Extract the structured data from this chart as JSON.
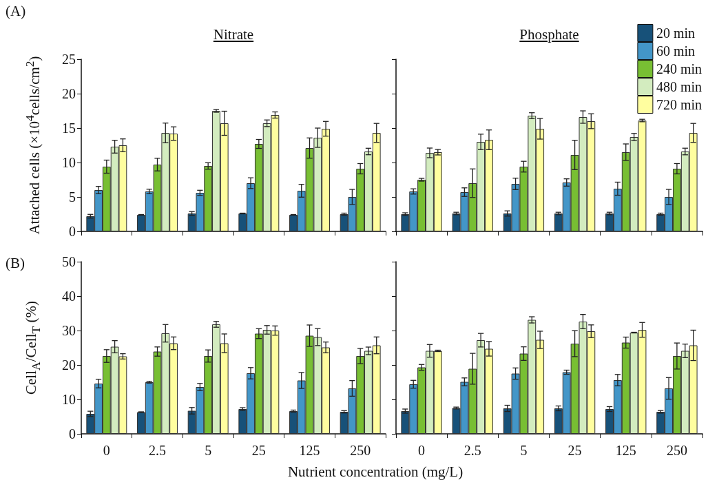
{
  "chart_data": [
    {
      "type": "bar",
      "title": "Nitrate",
      "ylabel": "Attached cells (×10$^{4}$cells/cm$^{2}$)",
      "annotations": [
        "(A)"
      ],
      "categories": [
        "0",
        "2.5",
        "5",
        "25",
        "125",
        "250"
      ],
      "ylim": [
        0,
        25
      ],
      "yticks": [
        0,
        5,
        10,
        15,
        20,
        25
      ],
      "grid": false,
      "tick_labels": "y",
      "series": [
        {
          "color": "#175179",
          "values": [
            2.2,
            2.4,
            2.6,
            2.6,
            2.4,
            2.5
          ],
          "errors": [
            0.27,
            0.05,
            0.28,
            0.05,
            0.05,
            0.15
          ]
        },
        {
          "color": "#4396c8",
          "values": [
            6.0,
            5.8,
            5.6,
            7.0,
            5.9,
            5.0
          ],
          "errors": [
            0.53,
            0.33,
            0.37,
            0.78,
            0.93,
            1.1
          ]
        },
        {
          "color": "#78bf33",
          "values": [
            9.4,
            9.7,
            9.5,
            12.7,
            12.1,
            9.1
          ],
          "errors": [
            0.95,
            0.92,
            0.47,
            0.65,
            1.47,
            0.75
          ]
        },
        {
          "color": "#d3ecbf",
          "values": [
            12.3,
            14.3,
            17.5,
            15.7,
            13.6,
            11.6
          ],
          "errors": [
            0.93,
            1.43,
            0.2,
            0.48,
            1.4,
            0.47
          ]
        },
        {
          "color": "#fffe9f",
          "values": [
            12.5,
            14.2,
            15.7,
            16.9,
            14.9,
            14.3
          ],
          "errors": [
            0.93,
            0.98,
            1.75,
            0.45,
            1.07,
            1.38
          ]
        }
      ]
    },
    {
      "type": "bar",
      "title": "Phosphate",
      "categories": [
        "0",
        "2.5",
        "5",
        "25",
        "125",
        "250"
      ],
      "ylim": [
        0,
        25
      ],
      "yticks": [
        0,
        5,
        10,
        15,
        20,
        25
      ],
      "grid": false,
      "tick_labels": false,
      "legend": "top right",
      "series": [
        {
          "name": "20 min",
          "color": "#175179",
          "values": [
            2.5,
            2.6,
            2.6,
            2.6,
            2.6,
            2.5
          ],
          "errors": [
            0.2,
            0.18,
            0.38,
            0.18,
            0.18,
            0.15
          ]
        },
        {
          "name": "60 min",
          "color": "#4396c8",
          "values": [
            5.8,
            5.7,
            6.9,
            7.1,
            6.2,
            5.0
          ],
          "errors": [
            0.38,
            0.62,
            0.83,
            0.53,
            0.95,
            1.1
          ]
        },
        {
          "name": "240 min",
          "color": "#78bf33",
          "values": [
            7.5,
            7.0,
            9.4,
            11.1,
            11.5,
            9.1
          ],
          "errors": [
            0.2,
            2.07,
            0.78,
            2.13,
            1.2,
            0.75
          ]
        },
        {
          "name": "480 min",
          "color": "#d3ecbf",
          "values": [
            11.4,
            13.0,
            16.8,
            16.6,
            13.7,
            11.6
          ],
          "errors": [
            0.7,
            1.12,
            0.43,
            0.9,
            0.52,
            0.48
          ]
        },
        {
          "name": "720 min",
          "color": "#fffe9f",
          "values": [
            11.5,
            13.3,
            14.9,
            16.0,
            16.1,
            14.3
          ],
          "errors": [
            0.4,
            1.43,
            1.5,
            1.08,
            0.18,
            1.38
          ]
        }
      ]
    },
    {
      "type": "bar",
      "ylabel": "Cell$_{A}$/Cell$_{T}$ (%)",
      "xlabel": "Nutrient concentration (mg/L)",
      "annotations": [
        "(B)"
      ],
      "categories": [
        "0",
        "2.5",
        "5",
        "25",
        "125",
        "250"
      ],
      "ylim": [
        0,
        50
      ],
      "yticks": [
        0,
        10,
        20,
        30,
        40,
        50
      ],
      "grid": false,
      "series": [
        {
          "color": "#175179",
          "values": [
            5.8,
            6.3,
            6.7,
            7.2,
            6.6,
            6.4
          ],
          "errors": [
            0.77,
            0.1,
            0.94,
            0.4,
            0.3,
            0.33
          ]
        },
        {
          "color": "#4396c8",
          "values": [
            14.6,
            15.0,
            13.6,
            17.6,
            15.5,
            13.2
          ],
          "errors": [
            1.24,
            0.27,
            1.04,
            1.64,
            2.31,
            2.27
          ]
        },
        {
          "color": "#78bf33",
          "values": [
            22.6,
            23.9,
            22.6,
            29.1,
            28.5,
            22.6
          ],
          "errors": [
            1.84,
            1.34,
            1.77,
            1.44,
            3.11,
            2.21
          ]
        },
        {
          "color": "#d3ecbf",
          "values": [
            25.3,
            29.2,
            31.8,
            30.2,
            28.1,
            24.1
          ],
          "errors": [
            1.77,
            2.54,
            0.84,
            1.24,
            2.47,
            1.1
          ]
        },
        {
          "color": "#fffe9f",
          "values": [
            22.5,
            26.3,
            26.3,
            30.0,
            25.1,
            25.7
          ],
          "errors": [
            0.77,
            1.84,
            2.71,
            1.34,
            1.57,
            2.44
          ]
        }
      ]
    },
    {
      "type": "bar",
      "categories": [
        "0",
        "2.5",
        "5",
        "25",
        "125",
        "250"
      ],
      "ylim": [
        0,
        50
      ],
      "yticks": [
        0,
        10,
        20,
        30,
        40,
        50
      ],
      "grid": false,
      "tick_labels": "x",
      "series": [
        {
          "color": "#175179",
          "values": [
            6.6,
            7.5,
            7.4,
            7.4,
            7.2,
            6.4
          ],
          "errors": [
            0.6,
            0.27,
            0.9,
            0.7,
            0.7,
            0.37
          ]
        },
        {
          "color": "#4396c8",
          "values": [
            14.4,
            15.1,
            17.5,
            17.9,
            15.6,
            13.2
          ],
          "errors": [
            1.14,
            1.14,
            1.64,
            0.6,
            1.64,
            3.14
          ]
        },
        {
          "color": "#78bf33",
          "values": [
            19.3,
            18.9,
            23.3,
            26.2,
            26.5,
            22.6
          ],
          "errors": [
            0.84,
            4.48,
            1.97,
            3.78,
            1.6,
            3.78
          ]
        },
        {
          "color": "#d3ecbf",
          "values": [
            24.1,
            27.2,
            33.1,
            32.6,
            29.4,
            24.1
          ],
          "errors": [
            1.84,
            1.97,
            0.9,
            2.07,
            0.1,
            1.97
          ]
        },
        {
          "color": "#fffe9f",
          "values": [
            24.1,
            24.7,
            27.3,
            29.8,
            30.2,
            25.7
          ],
          "errors": [
            0.2,
            2.11,
            2.51,
            1.84,
            2.14,
            4.41
          ]
        }
      ]
    }
  ]
}
